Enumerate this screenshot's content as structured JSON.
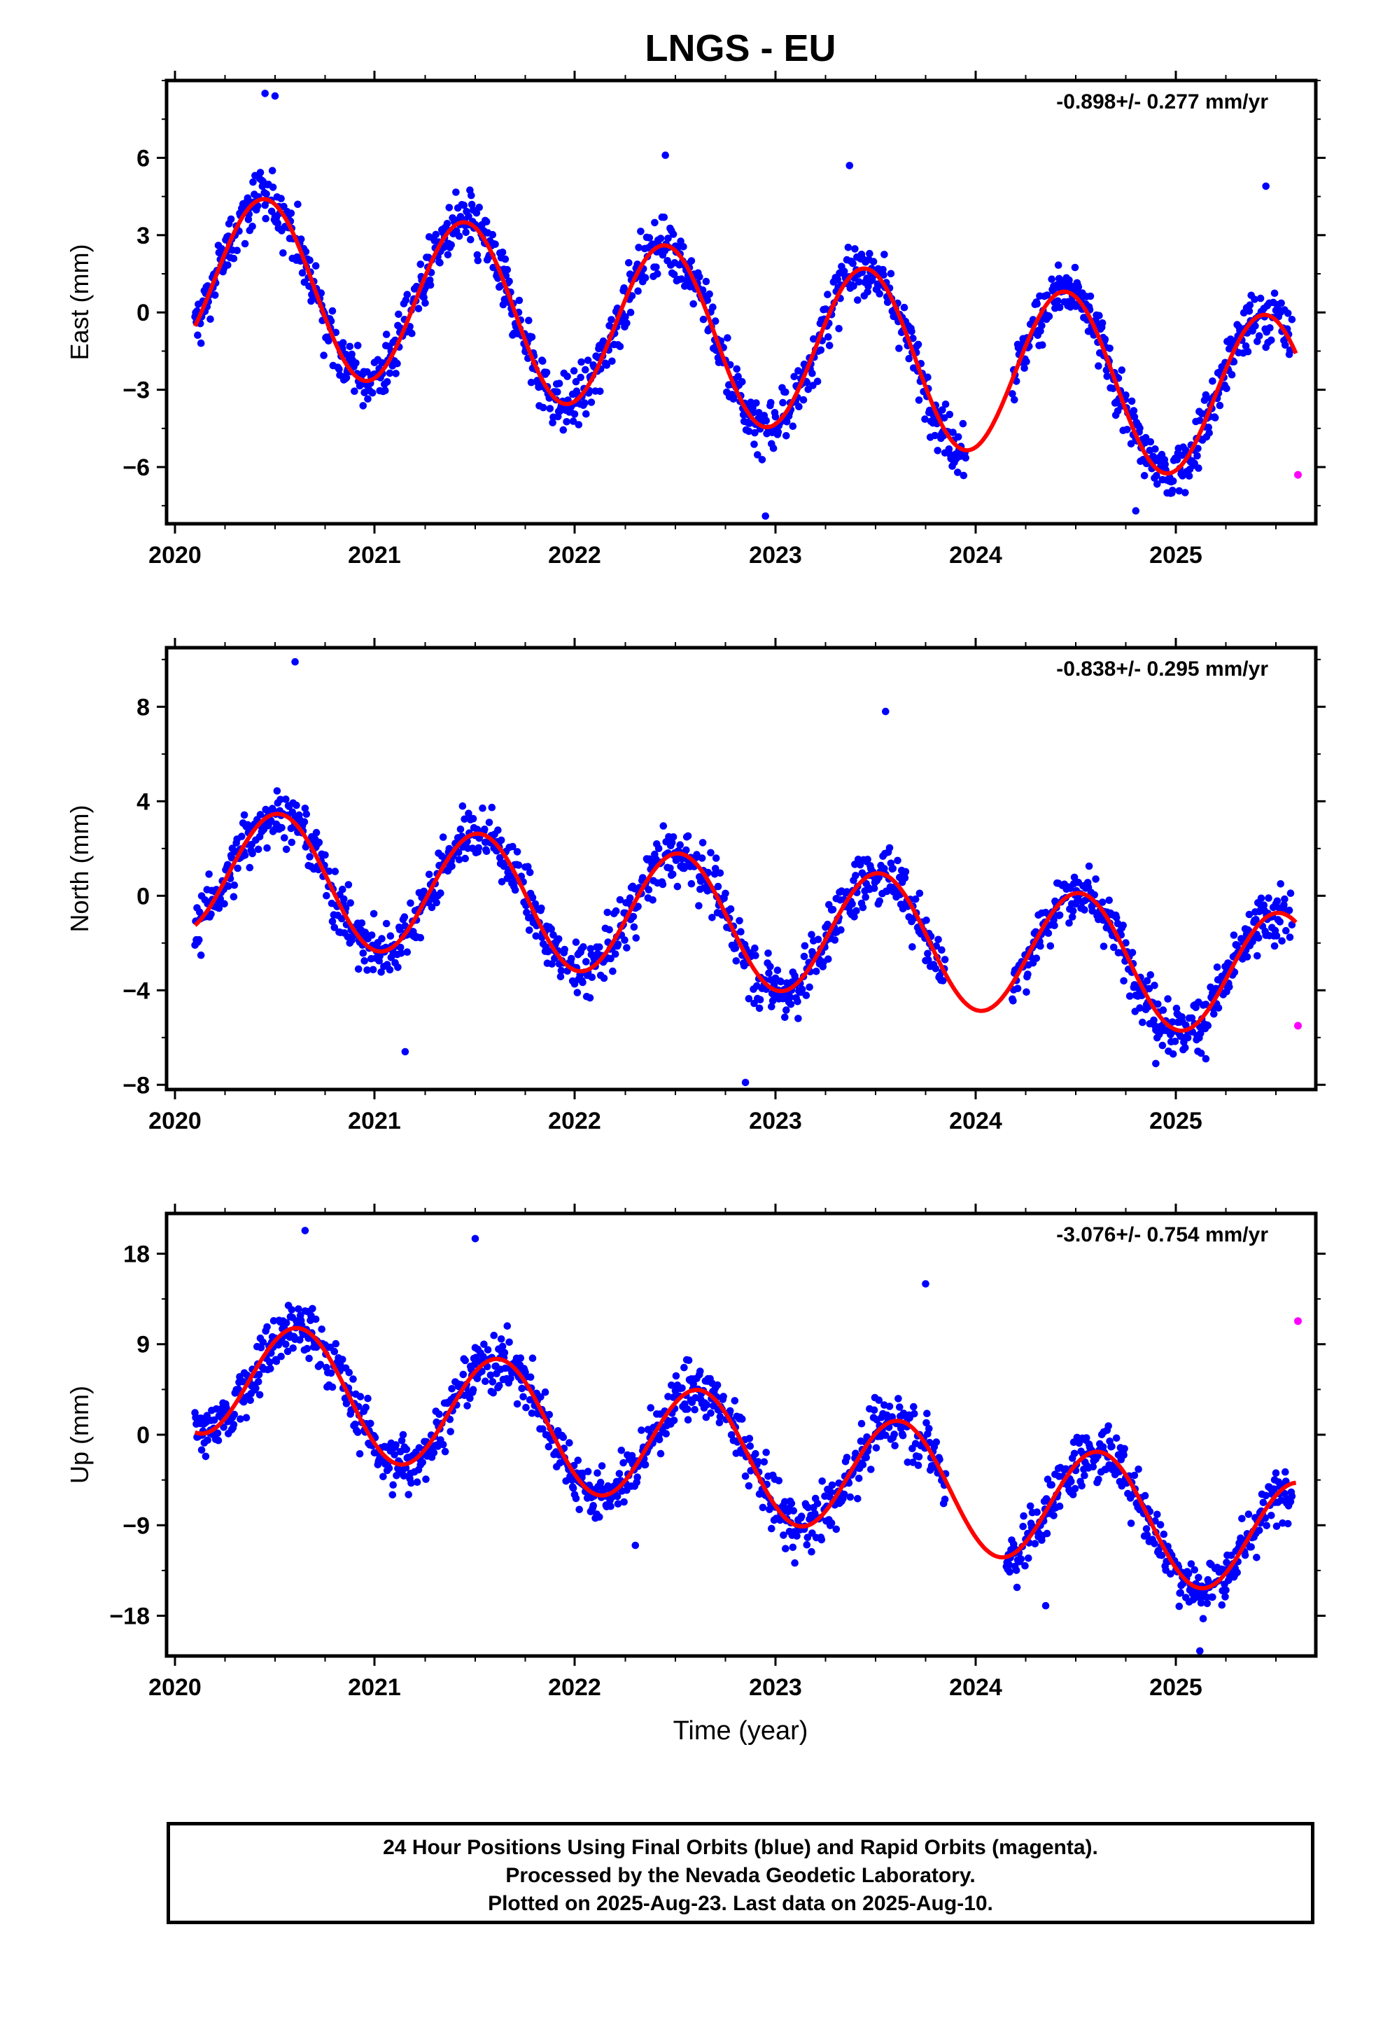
{
  "title": "LNGS - EU",
  "colors": {
    "final_orbits": "#0000ff",
    "rapid_orbits": "#ff00ff",
    "model_fit": "#ff0000",
    "frame": "#000000"
  },
  "x_axis": {
    "label": "Time (year)",
    "ticks": [
      "2020",
      "2021",
      "2022",
      "2023",
      "2024",
      "2025"
    ]
  },
  "chart_data": [
    {
      "type": "scatter",
      "name": "east",
      "ylabel": "East (mm)",
      "rate_label": "-0.898+/- 0.277 mm/yr",
      "xlim": [
        2019.95,
        2025.7
      ],
      "ylim": [
        -8.2,
        9.0
      ],
      "yticks": [
        6,
        3,
        0,
        -3,
        -6
      ],
      "ytick_labels": [
        "6",
        "3",
        "0",
        "−3",
        "−6"
      ],
      "fit": {
        "offset": 1.5,
        "rate": -0.898,
        "amplitude": 3.3,
        "peak": 0.45,
        "start": 2020.1,
        "end": 2025.6
      },
      "rapid_point": {
        "x": 2025.61,
        "y": -6.3
      },
      "outliers": [
        [
          2020.45,
          8.5
        ],
        [
          2020.5,
          8.4
        ],
        [
          2022.45,
          6.1
        ],
        [
          2023.37,
          5.7
        ],
        [
          2022.95,
          -7.9
        ],
        [
          2024.8,
          -7.7
        ],
        [
          2025.45,
          4.9
        ]
      ],
      "final_series": {
        "start": 2020.1,
        "end": 2025.58,
        "noise": 1.05,
        "gaps": [
          [
            2023.95,
            2024.18
          ]
        ]
      }
    },
    {
      "type": "scatter",
      "name": "north",
      "ylabel": "North (mm)",
      "rate_label": "-0.838+/- 0.295 mm/yr",
      "xlim": [
        2019.95,
        2025.7
      ],
      "ylim": [
        -8.2,
        10.5
      ],
      "yticks": [
        8,
        4,
        0,
        -4,
        -8
      ],
      "ytick_labels": [
        "8",
        "4",
        "0",
        "−4",
        "−8"
      ],
      "fit": {
        "offset": 1.2,
        "rate": -0.838,
        "amplitude": 2.7,
        "peak": 0.52,
        "start": 2020.1,
        "end": 2025.6
      },
      "rapid_point": {
        "x": 2025.61,
        "y": -5.5
      },
      "outliers": [
        [
          2020.6,
          9.9
        ],
        [
          2023.55,
          7.8
        ],
        [
          2022.85,
          -7.9
        ],
        [
          2021.15,
          -6.6
        ],
        [
          2025.15,
          -6.9
        ],
        [
          2024.9,
          -7.1
        ]
      ],
      "final_series": {
        "start": 2020.1,
        "end": 2025.58,
        "noise": 1.15,
        "gaps": [
          [
            2023.85,
            2024.18
          ]
        ]
      }
    },
    {
      "type": "scatter",
      "name": "up",
      "ylabel": "Up (mm)",
      "rate_label": "-3.076+/- 0.754 mm/yr",
      "xlim": [
        2019.95,
        2025.7
      ],
      "ylim": [
        -22,
        22
      ],
      "yticks": [
        18,
        9,
        0,
        -9,
        -18
      ],
      "ytick_labels": [
        "18",
        "9",
        "0",
        "−9",
        "−18"
      ],
      "fit": {
        "offset": 6.5,
        "rate": -3.076,
        "amplitude": 6.0,
        "peak": 0.62,
        "start": 2020.1,
        "end": 2025.6
      },
      "rapid_point": {
        "x": 2025.61,
        "y": 11.3
      },
      "outliers": [
        [
          2021.5,
          19.5
        ],
        [
          2020.65,
          20.3
        ],
        [
          2023.75,
          15.0
        ],
        [
          2025.12,
          -21.5
        ],
        [
          2024.35,
          -17.0
        ],
        [
          2022.3,
          -11.0
        ]
      ],
      "final_series": {
        "start": 2020.1,
        "end": 2025.58,
        "noise": 2.7,
        "gaps": [
          [
            2023.85,
            2024.15
          ]
        ]
      }
    }
  ],
  "footer": {
    "line1": "24 Hour Positions Using Final Orbits (blue) and Rapid Orbits (magenta).",
    "line2": "Processed by the Nevada Geodetic Laboratory.",
    "line3": "Plotted on 2025-Aug-23. Last data on 2025-Aug-10."
  }
}
